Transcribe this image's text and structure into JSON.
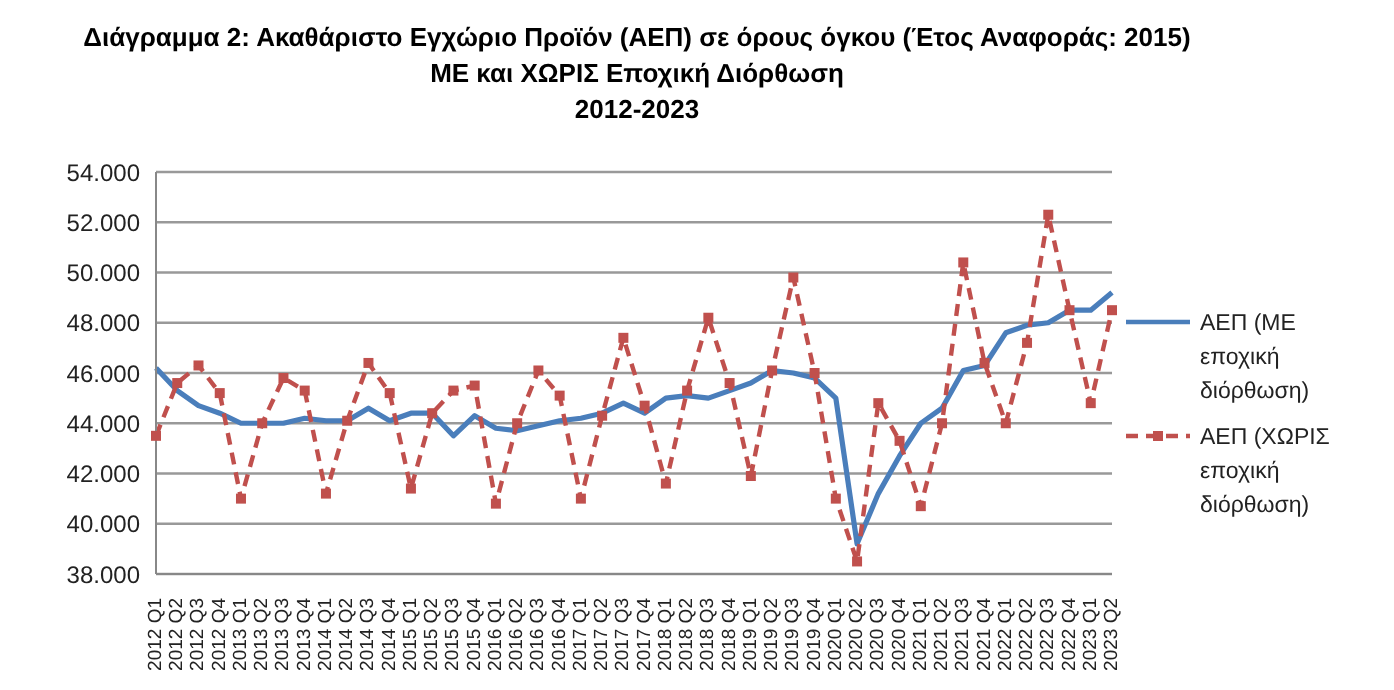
{
  "chart_data": {
    "type": "line",
    "title": "Διάγραμμα 2: Ακαθάριστο Εγχώριο Προϊόν (ΑΕΠ) σε όρους όγκου (Έτος Αναφοράς: 2015)\nΜΕ και ΧΩΡΙΣ Εποχική Διόρθωση\n2012-2023",
    "categories": [
      "2012 Q1",
      "2012 Q2",
      "2012 Q3",
      "2012 Q4",
      "2013 Q1",
      "2013 Q2",
      "2013 Q3",
      "2013 Q4",
      "2014 Q1",
      "2014 Q2",
      "2014 Q3",
      "2014 Q4",
      "2015 Q1",
      "2015 Q2",
      "2015 Q3",
      "2015 Q4",
      "2016 Q1",
      "2016 Q2",
      "2016 Q3",
      "2016 Q4",
      "2017 Q1",
      "2017 Q2",
      "2017 Q3",
      "2017 Q4",
      "2018 Q1",
      "2018 Q2",
      "2018 Q3",
      "2018 Q4",
      "2019 Q1",
      "2019 Q2",
      "2019 Q3",
      "2019 Q4",
      "2020 Q1",
      "2020 Q2",
      "2020 Q3",
      "2020 Q4",
      "2021 Q1",
      "2021 Q2",
      "2021 Q3",
      "2021 Q4",
      "2022 Q1",
      "2022 Q2",
      "2022 Q3",
      "2022 Q4",
      "2023 Q1",
      "2023 Q2"
    ],
    "series": [
      {
        "name": "ΑΕΠ (ΜΕ εποχική διόρθωση)",
        "color": "#4a7ebb",
        "marker": "none",
        "line_style": "solid",
        "values": [
          46200,
          45300,
          44700,
          44400,
          44000,
          44000,
          44000,
          44200,
          44100,
          44100,
          44600,
          44100,
          44400,
          44400,
          43500,
          44300,
          43800,
          43700,
          43900,
          44100,
          44200,
          44400,
          44800,
          44400,
          45000,
          45100,
          45000,
          45300,
          45600,
          46100,
          46000,
          45800,
          45000,
          39200,
          41200,
          42700,
          44000,
          44600,
          46100,
          46300,
          47600,
          47900,
          48000,
          48500,
          48500,
          49200
        ]
      },
      {
        "name": "ΑΕΠ (ΧΩΡΙΣ εποχική διόρθωση)",
        "color": "#c0504d",
        "marker": "square",
        "line_style": "dashed",
        "values": [
          43500,
          45600,
          46300,
          45200,
          41000,
          44000,
          45800,
          45300,
          41200,
          44100,
          46400,
          45200,
          41400,
          44400,
          45300,
          45500,
          40800,
          44000,
          46100,
          45100,
          41000,
          44300,
          47400,
          44700,
          41600,
          45300,
          48200,
          45600,
          41900,
          46100,
          49800,
          46000,
          41000,
          38500,
          44800,
          43300,
          40700,
          44000,
          50400,
          46400,
          44000,
          47200,
          52300,
          48500,
          44800,
          48500
        ]
      }
    ],
    "ylim": [
      38000,
      54000
    ],
    "yticks": [
      {
        "value": 38000,
        "label": "38.000"
      },
      {
        "value": 40000,
        "label": "40.000"
      },
      {
        "value": 42000,
        "label": "42.000"
      },
      {
        "value": 44000,
        "label": "44.000"
      },
      {
        "value": 46000,
        "label": "46.000"
      },
      {
        "value": 48000,
        "label": "48.000"
      },
      {
        "value": 50000,
        "label": "50.000"
      },
      {
        "value": 52000,
        "label": "52.000"
      },
      {
        "value": 54000,
        "label": "54.000"
      }
    ],
    "grid": "y",
    "legend": "right"
  }
}
